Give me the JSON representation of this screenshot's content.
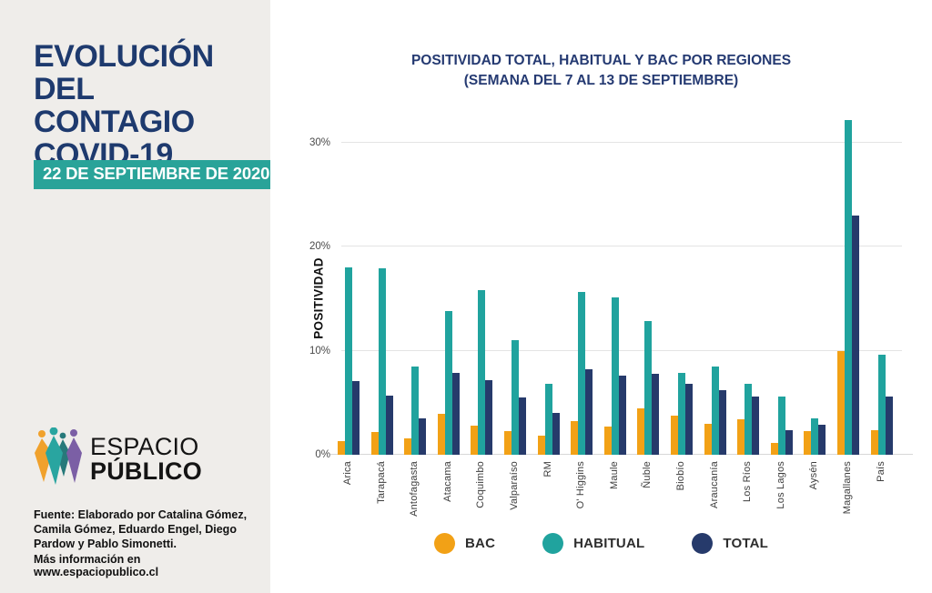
{
  "left_panel": {
    "title_lines": [
      "EVOLUCIÓN",
      "DEL CONTAGIO",
      "COVID-19"
    ],
    "date_badge": "22 DE SEPTIEMBRE DE 2020",
    "logo": {
      "line1": "ESPACIO",
      "line2": "PÚBLICO"
    },
    "source_text": "Fuente: Elaborado por Catalina Gómez, Camila Gómez, Eduardo Engel, Diego Pardow y Pablo Simonetti.",
    "info_text": "Más información en www.espaciopublico.cl"
  },
  "chart_data": {
    "type": "bar",
    "title_lines": [
      "POSITIVIDAD TOTAL, HABITUAL Y BAC POR REGIONES",
      "(SEMANA DEL 7 AL 13 DE SEPTIEMBRE)"
    ],
    "ylabel": "POSITIVIDAD",
    "xlabel": "",
    "y_ticks": [
      0,
      10,
      20,
      30
    ],
    "y_tick_suffix": "%",
    "ylim": [
      0,
      33
    ],
    "grid": true,
    "legend_position": "bottom",
    "categories": [
      "Arica",
      "Tarapacá",
      "Antofagasta",
      "Atacama",
      "Coquimbo",
      "Valparaíso",
      "RM",
      "O' Higgins",
      "Maule",
      "Ñuble",
      "Biobío",
      "Araucanía",
      "Los Ríos",
      "Los Lagos",
      "Aysén",
      "Magallanes",
      "País"
    ],
    "series": [
      {
        "name": "BAC",
        "color": "#f2a116",
        "values": [
          1.3,
          2.2,
          1.6,
          3.9,
          2.8,
          2.3,
          1.8,
          3.2,
          2.7,
          4.5,
          3.8,
          3.0,
          3.4,
          1.1,
          2.3,
          10.0,
          2.4
        ]
      },
      {
        "name": "HABITUAL",
        "color": "#20a39e",
        "values": [
          18.0,
          17.9,
          8.5,
          13.8,
          15.8,
          11.0,
          6.8,
          15.7,
          15.1,
          12.9,
          7.9,
          8.5,
          6.8,
          5.6,
          3.5,
          32.2,
          9.6
        ]
      },
      {
        "name": "TOTAL",
        "color": "#263a6b",
        "values": [
          7.1,
          5.7,
          3.5,
          7.9,
          7.2,
          5.5,
          4.0,
          8.2,
          7.6,
          7.8,
          6.8,
          6.2,
          5.6,
          2.4,
          2.9,
          23.0,
          5.6
        ]
      }
    ]
  },
  "colors": {
    "panel_background": "#efedea",
    "headline_navy": "#1e3a6e",
    "badge_teal": "#29a399",
    "chart_title_navy": "#253a72",
    "logo_orange": "#f0a12c",
    "logo_teal": "#29a5a0",
    "logo_dark_teal": "#27797a",
    "logo_purple": "#7b5fa5"
  }
}
